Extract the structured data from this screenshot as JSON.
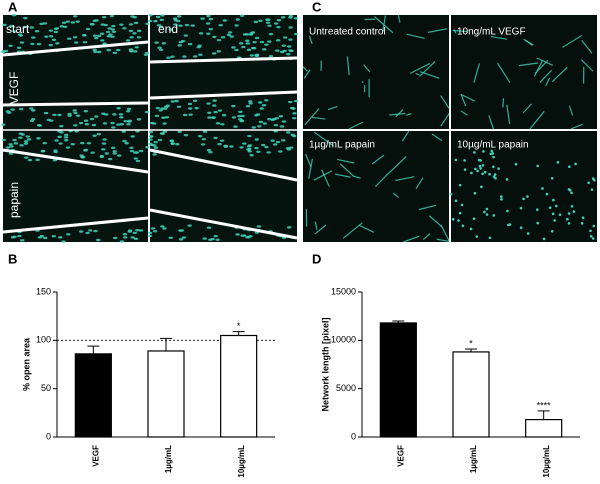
{
  "panel_labels": [
    "A",
    "B",
    "C",
    "D"
  ],
  "image_labels": {
    "A": [
      "start",
      "end",
      "VEGF",
      "papain"
    ],
    "C": [
      "Untreated control",
      "10ng/mL VEGF",
      "1µg/mL papain",
      "10µg/mL papain"
    ]
  },
  "chart_data": [
    {
      "type": "bar",
      "ylabel": "% open area",
      "categories": [
        "VEGF",
        "1µg/mL",
        "10µg/mL"
      ],
      "values": [
        86,
        89,
        105
      ],
      "errors": [
        8,
        13,
        4
      ],
      "colors": [
        "#000000",
        "#ffffff",
        "#ffffff"
      ],
      "annotations": [
        null,
        null,
        "*"
      ],
      "reference_line": 100,
      "ylim": [
        0,
        150
      ],
      "yticks": [
        0,
        50,
        100,
        150
      ]
    },
    {
      "type": "bar",
      "ylabel": "Network length [pixel]",
      "categories": [
        "VEGF",
        "1µg/mL",
        "10µg/mL"
      ],
      "values": [
        11800,
        8800,
        1800
      ],
      "errors": [
        200,
        300,
        900
      ],
      "colors": [
        "#000000",
        "#ffffff",
        "#ffffff"
      ],
      "annotations": [
        null,
        "*",
        "****"
      ],
      "ylim": [
        0,
        15000
      ],
      "yticks": [
        0,
        5000,
        10000,
        15000
      ]
    }
  ]
}
